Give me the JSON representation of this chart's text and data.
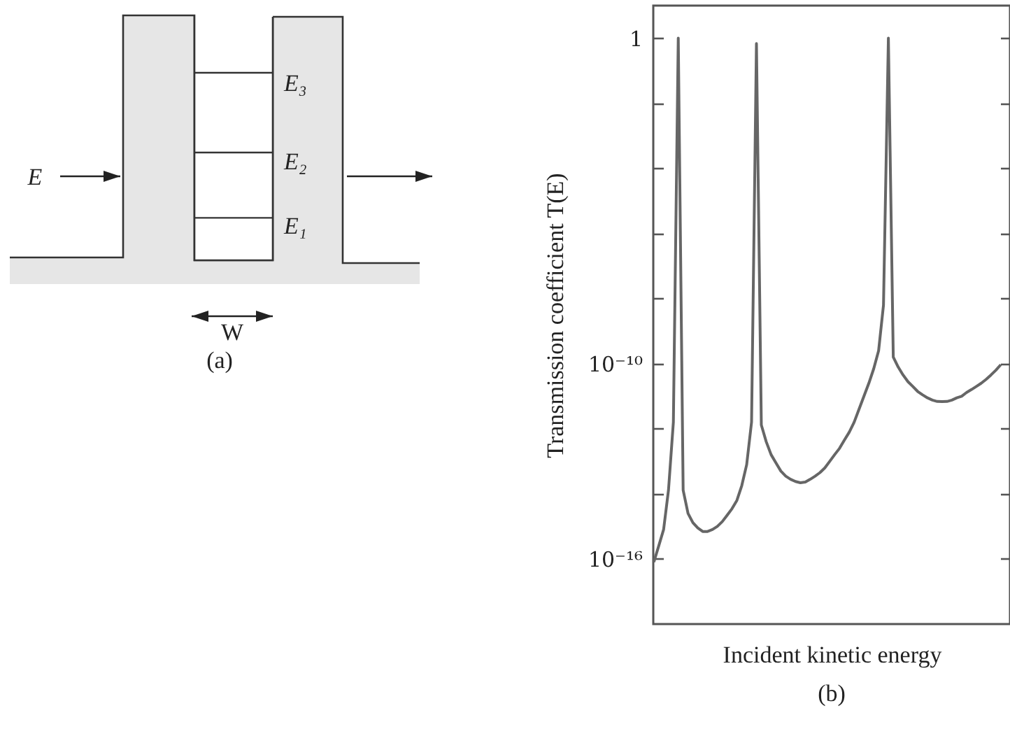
{
  "chart_data": {
    "type": "line",
    "ylabel": "Transmission coefficient T(E)",
    "xlabel": "Incident kinetic energy",
    "annotations": [
      "E",
      "E₃",
      "E₂",
      "E₁",
      "W",
      "(a)",
      "(b)"
    ],
    "log": "y",
    "ylim": [
      1e-18,
      10
    ],
    "yticks": [
      {
        "value": 1,
        "label": "1"
      },
      {
        "value": 0.01,
        "label": null
      },
      {
        "value": 0.0001,
        "label": null
      },
      {
        "value": 1e-06,
        "label": null
      },
      {
        "value": 1e-08,
        "label": null
      },
      {
        "value": 1e-10,
        "label": "10⁻¹⁰"
      },
      {
        "value": 1e-12,
        "label": null
      },
      {
        "value": 1e-14,
        "label": null
      },
      {
        "value": 1e-16,
        "label": "10⁻¹⁶"
      }
    ],
    "categories": [
      null,
      null,
      null,
      null,
      null,
      null,
      null,
      null,
      null,
      null,
      null,
      null,
      null,
      null,
      null,
      null,
      null,
      null,
      null,
      null,
      null,
      null,
      null,
      null,
      null,
      null,
      null,
      null,
      null,
      null,
      null,
      null,
      null,
      null,
      null,
      null,
      null,
      null,
      null,
      null,
      null,
      null,
      null,
      null,
      null,
      null,
      null,
      null,
      null,
      null,
      null,
      null,
      null,
      null,
      null,
      null,
      null,
      null,
      null,
      null,
      null,
      null,
      null,
      null,
      null,
      null,
      null,
      null,
      null,
      null,
      null,
      null
    ],
    "series": [
      {
        "color": "#666666",
        "values": [
          8e-17,
          2.5e-16,
          8e-16,
          1.3e-14,
          1.6e-12,
          1,
          1.3e-14,
          2.5e-15,
          1.3e-15,
          9e-16,
          7e-16,
          7e-16,
          8e-16,
          1e-15,
          1.4e-15,
          2.2e-15,
          3.5e-15,
          6.3e-15,
          1.8e-14,
          7.9e-14,
          1.6e-12,
          0.68,
          1.3e-12,
          4e-13,
          1.6e-13,
          8.9e-14,
          5e-14,
          3.5e-14,
          2.8e-14,
          2.4e-14,
          2.2e-14,
          2.3e-14,
          2.8e-14,
          3.5e-14,
          4.5e-14,
          6.3e-14,
          1e-13,
          1.6e-13,
          2.5e-13,
          4.5e-13,
          7.9e-13,
          1.6e-12,
          4e-12,
          1e-11,
          2.5e-11,
          7e-11,
          2.5e-10,
          6.3e-09,
          1,
          1.6e-10,
          7.9e-11,
          4.5e-11,
          2.8e-11,
          2e-11,
          1.4e-11,
          1.1e-11,
          8.9e-12,
          7.6e-12,
          6.9e-12,
          6.8e-12,
          6.9e-12,
          7.6e-12,
          8.9e-12,
          1e-11,
          1.3e-11,
          1.6e-11,
          2e-11,
          2.5e-11,
          3.3e-11,
          4.5e-11,
          6.3e-11,
          9.3e-11
        ]
      }
    ]
  }
}
